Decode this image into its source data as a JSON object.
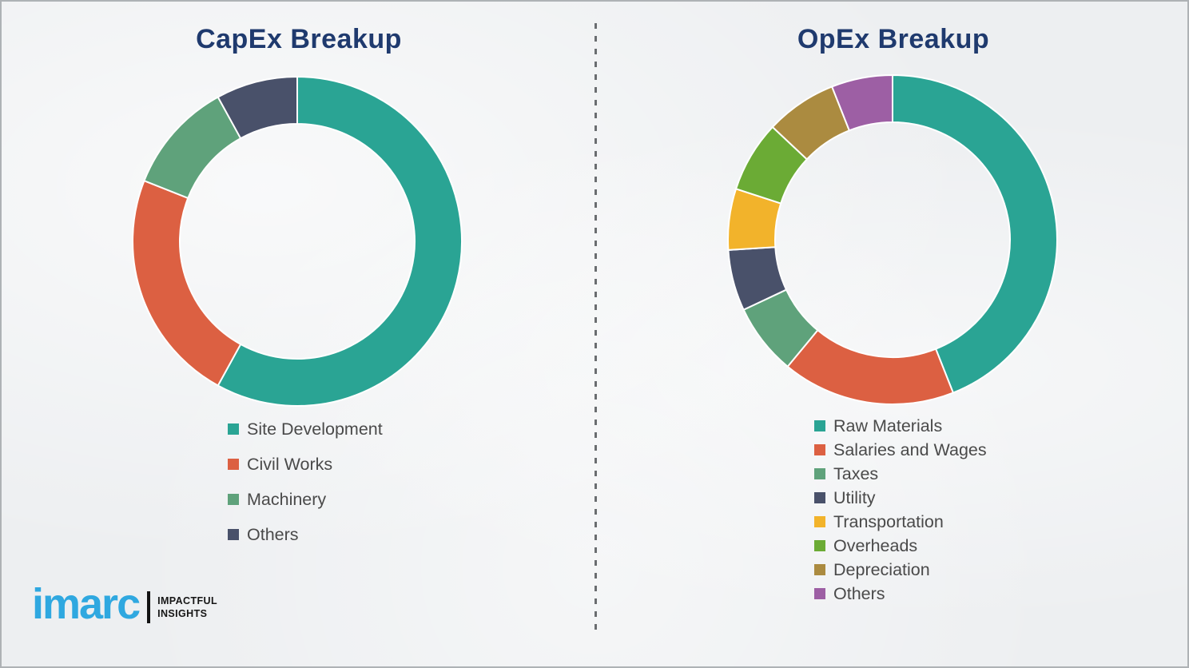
{
  "charts": {
    "capex": {
      "title": "CapEx Breakup"
    },
    "opex": {
      "title": "OpEx Breakup"
    }
  },
  "chart_data": [
    {
      "type": "pie",
      "variant": "donut",
      "title": "CapEx Breakup",
      "labels": [
        "Site Development",
        "Civil Works",
        "Machinery",
        "Others"
      ],
      "values": [
        58,
        23,
        11,
        8
      ],
      "colors": [
        "#2aa494",
        "#dc6042",
        "#5fa27b",
        "#49516a"
      ],
      "start_angle_deg": 0,
      "direction": "clockwise",
      "legend_position": "below-left",
      "units": "percent"
    },
    {
      "type": "pie",
      "variant": "donut",
      "title": "OpEx Breakup",
      "labels": [
        "Raw Materials",
        "Salaries and Wages",
        "Taxes",
        "Utility",
        "Transportation",
        "Overheads",
        "Depreciation",
        "Others"
      ],
      "values": [
        44,
        17,
        7,
        6,
        6,
        7,
        7,
        6
      ],
      "colors": [
        "#2aa494",
        "#dc6042",
        "#5fa27b",
        "#49516a",
        "#f2b32b",
        "#6bab35",
        "#ab8b40",
        "#9d5fa4"
      ],
      "start_angle_deg": 0,
      "direction": "clockwise",
      "legend_position": "below-left",
      "units": "percent"
    }
  ],
  "logo": {
    "brand": "imarc",
    "tagline_line1": "IMPACTFUL",
    "tagline_line2": "INSIGHTS",
    "brand_color": "#2fa8e0"
  },
  "colors": {
    "title_text": "#1f3a6e",
    "legend_text": "#4a4a4a",
    "background": "#edeff1",
    "divider": "#6a6d70",
    "slice_gap": "#ffffff"
  }
}
